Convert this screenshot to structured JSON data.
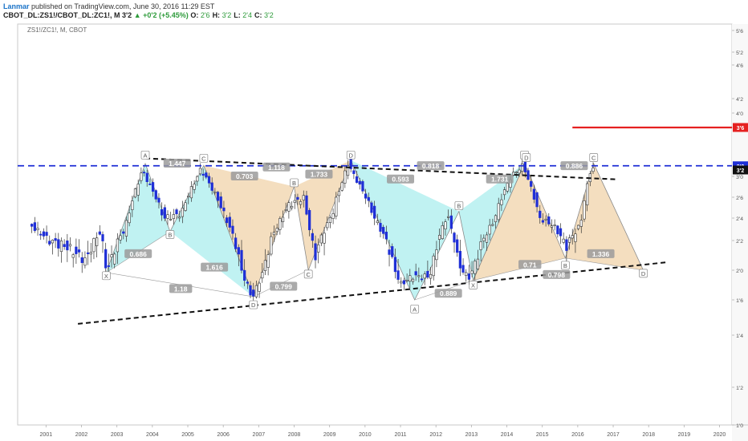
{
  "header": {
    "publisher": "Lanmar",
    "published_text": " published on TradingView.com, June 30, 2016 11:29 EST",
    "symbol": "CBOT_DL:ZS1!/CBOT_DL:ZC1!, M",
    "last": "3'2",
    "change": "+0'2 (+5.45%)",
    "ohlc": [
      {
        "k": "O:",
        "v": "2'6"
      },
      {
        "k": "H:",
        "v": "3'2"
      },
      {
        "k": "L:",
        "v": "2'4"
      },
      {
        "k": "C:",
        "v": "3'2"
      }
    ]
  },
  "symbol_label": "ZS1!/ZC1!, M, CBOT",
  "colors": {
    "bull_fill": "#ffffff",
    "bear_fill": "#1f2fd6",
    "candle_wick": "#333333",
    "cyan_fill": "#bdf1f1",
    "tan_fill": "#f3dcbc",
    "pattern_edge": "#8a8a8a",
    "blue_line": "#1f2fd6",
    "red_line": "#e52121",
    "trend_line": "#111111",
    "price_label_red": "#e52121",
    "price_label_blue": "#1f2fd6",
    "price_label_black": "#111111",
    "axis_text": "#555555"
  },
  "chart_data": {
    "type": "candlestick",
    "price_axis_ticks": [
      "5'6",
      "5'2",
      "4'6",
      "4'2",
      "4'0",
      "3'6",
      "3'0",
      "2'6",
      "2'4",
      "2'2",
      "2'0",
      "1'6",
      "1'4",
      "1'2",
      "1'0"
    ],
    "price_labels": [
      {
        "text": "3'6",
        "value": 3.86,
        "style": "red"
      },
      {
        "text": "3'2",
        "value": 3.265,
        "style": "blue"
      },
      {
        "text": "3'2",
        "value": 3.2,
        "style": "black"
      }
    ],
    "time_axis_labels": [
      "2001",
      "2002",
      "2003",
      "2004",
      "2005",
      "2006",
      "2007",
      "2008",
      "2009",
      "2010",
      "2011",
      "2012",
      "2013",
      "2014",
      "2015",
      "2016",
      "2017",
      "2018",
      "2019",
      "2020"
    ],
    "x_range": [
      2000.2,
      2020.35
    ],
    "y_range": [
      1.0,
      5.85
    ],
    "anchors": [
      {
        "t": 2000.6,
        "p": 2.42
      },
      {
        "t": 2001.2,
        "p": 2.2
      },
      {
        "t": 2001.7,
        "p": 2.15
      },
      {
        "t": 2002.2,
        "p": 2.05
      },
      {
        "t": 2002.6,
        "p": 2.3
      },
      {
        "t": 2002.8,
        "p": 1.97
      },
      {
        "t": 2003.3,
        "p": 2.35
      },
      {
        "t": 2003.8,
        "p": 3.2
      },
      {
        "t": 2004.4,
        "p": 2.5
      },
      {
        "t": 2004.9,
        "p": 2.55
      },
      {
        "t": 2005.45,
        "p": 3.22
      },
      {
        "t": 2006.2,
        "p": 2.45
      },
      {
        "t": 2006.9,
        "p": 1.62
      },
      {
        "t": 2007.5,
        "p": 2.3
      },
      {
        "t": 2007.9,
        "p": 2.65
      },
      {
        "t": 2008.35,
        "p": 2.75
      },
      {
        "t": 2008.65,
        "p": 2.05
      },
      {
        "t": 2009.2,
        "p": 2.6
      },
      {
        "t": 2009.6,
        "p": 3.3
      },
      {
        "t": 2010.3,
        "p": 2.55
      },
      {
        "t": 2010.8,
        "p": 2.1
      },
      {
        "t": 2011.1,
        "p": 1.8
      },
      {
        "t": 2011.4,
        "p": 1.9
      },
      {
        "t": 2011.9,
        "p": 1.9
      },
      {
        "t": 2012.4,
        "p": 2.55
      },
      {
        "t": 2012.7,
        "p": 2.05
      },
      {
        "t": 2013.0,
        "p": 1.88
      },
      {
        "t": 2013.7,
        "p": 2.45
      },
      {
        "t": 2014.2,
        "p": 3.1
      },
      {
        "t": 2014.55,
        "p": 3.28
      },
      {
        "t": 2015.0,
        "p": 2.5
      },
      {
        "t": 2015.4,
        "p": 2.4
      },
      {
        "t": 2015.75,
        "p": 2.15
      },
      {
        "t": 2016.15,
        "p": 2.4
      },
      {
        "t": 2016.45,
        "p": 3.22
      }
    ],
    "overlays": {
      "resistance_level": 3.265,
      "target_line": {
        "t1": 2015.85,
        "t2": 2020.35,
        "p": 3.86
      },
      "upper_trendline": {
        "t1": 2003.8,
        "p1": 3.38,
        "t2": 2017.1,
        "p2": 3.05
      },
      "lower_trendline": {
        "t1": 2001.9,
        "p1": 1.43,
        "t2": 2018.55,
        "p2": 2.04
      }
    },
    "patterns": [
      {
        "color": "cyan",
        "points": [
          {
            "t": 2002.7,
            "p": 1.95
          },
          {
            "t": 2003.8,
            "p": 3.3
          },
          {
            "t": 2004.5,
            "p": 2.32
          },
          {
            "t": 2005.45,
            "p": 3.27
          },
          {
            "t": 2006.85,
            "p": 1.64
          }
        ]
      },
      {
        "color": "tan",
        "points": [
          {
            "t": 2005.45,
            "p": 3.27
          },
          {
            "t": 2006.85,
            "p": 1.64
          },
          {
            "t": 2008.0,
            "p": 2.93
          },
          {
            "t": 2008.4,
            "p": 1.98
          },
          {
            "t": 2009.6,
            "p": 3.35
          }
        ]
      },
      {
        "color": "cyan",
        "points": [
          {
            "t": 2009.6,
            "p": 3.35
          },
          {
            "t": 2011.4,
            "p": 1.6
          },
          {
            "t": 2012.65,
            "p": 2.58
          },
          {
            "t": 2013.05,
            "p": 1.85
          },
          {
            "t": 2014.5,
            "p": 3.3
          }
        ]
      },
      {
        "color": "tan",
        "points": [
          {
            "t": 2013.05,
            "p": 1.85
          },
          {
            "t": 2014.5,
            "p": 3.3
          },
          {
            "t": 2015.65,
            "p": 2.07
          },
          {
            "t": 2016.45,
            "p": 3.3
          },
          {
            "t": 2017.85,
            "p": 1.98
          }
        ]
      }
    ],
    "dashed_connectors": [
      {
        "from": {
          "t": 2002.7,
          "p": 1.95
        },
        "to": {
          "t": 2006.85,
          "p": 1.64
        }
      },
      {
        "from": {
          "t": 2002.7,
          "p": 1.95
        },
        "to": {
          "t": 2004.5,
          "p": 2.32
        }
      },
      {
        "from": {
          "t": 2006.85,
          "p": 1.64
        },
        "to": {
          "t": 2008.4,
          "p": 1.98
        }
      },
      {
        "from": {
          "t": 2011.4,
          "p": 1.6
        },
        "to": {
          "t": 2013.05,
          "p": 1.85
        }
      },
      {
        "from": {
          "t": 2013.05,
          "p": 1.85
        },
        "to": {
          "t": 2015.65,
          "p": 2.07
        }
      },
      {
        "from": {
          "t": 2015.65,
          "p": 2.07
        },
        "to": {
          "t": 2017.85,
          "p": 1.98
        }
      }
    ],
    "ratio_labels": [
      {
        "text": "0.686",
        "t": 2003.6,
        "p": 2.1
      },
      {
        "text": "1.447",
        "t": 2004.7,
        "p": 3.3
      },
      {
        "text": "1.616",
        "t": 2005.75,
        "p": 2.0
      },
      {
        "text": "1.18",
        "t": 2004.8,
        "p": 1.74
      },
      {
        "text": "0.703",
        "t": 2006.6,
        "p": 3.1
      },
      {
        "text": "1.118",
        "t": 2007.5,
        "p": 3.24
      },
      {
        "text": "1.733",
        "t": 2008.7,
        "p": 3.13
      },
      {
        "text": "0.799",
        "t": 2007.7,
        "p": 1.77
      },
      {
        "text": "0.593",
        "t": 2011.0,
        "p": 3.05
      },
      {
        "text": "1.731",
        "t": 2013.8,
        "p": 3.05
      },
      {
        "text": "0.71",
        "t": 2014.65,
        "p": 2.02
      },
      {
        "text": "0.889",
        "t": 2012.35,
        "p": 1.68
      },
      {
        "text": "1.336",
        "t": 2016.65,
        "p": 2.1
      },
      {
        "text": "0.886",
        "t": 2015.9,
        "p": 3.26
      },
      {
        "text": "0.818",
        "t": 2011.85,
        "p": 3.26
      },
      {
        "text": "0.798",
        "t": 2015.4,
        "p": 1.92
      }
    ],
    "point_labels": [
      {
        "text": "X",
        "t": 2002.7,
        "p": 1.9
      },
      {
        "text": "A",
        "t": 2003.8,
        "p": 3.42
      },
      {
        "text": "B",
        "t": 2004.5,
        "p": 2.27
      },
      {
        "text": "C",
        "t": 2005.45,
        "p": 3.37
      },
      {
        "text": "D",
        "t": 2006.85,
        "p": 1.56
      },
      {
        "text": "B",
        "t": 2008.0,
        "p": 2.98
      },
      {
        "text": "C",
        "t": 2008.4,
        "p": 1.92
      },
      {
        "text": "D",
        "t": 2009.6,
        "p": 3.42
      },
      {
        "text": "A",
        "t": 2011.4,
        "p": 1.53
      },
      {
        "text": "B",
        "t": 2012.65,
        "p": 2.64
      },
      {
        "text": "X",
        "t": 2013.05,
        "p": 1.78
      },
      {
        "text": "C",
        "t": 2014.5,
        "p": 3.42
      },
      {
        "text": "D",
        "t": 2014.55,
        "p": 3.38
      },
      {
        "text": "B",
        "t": 2015.65,
        "p": 2.01
      },
      {
        "text": "C",
        "t": 2016.45,
        "p": 3.38
      },
      {
        "text": "D",
        "t": 2017.85,
        "p": 1.93
      }
    ]
  }
}
